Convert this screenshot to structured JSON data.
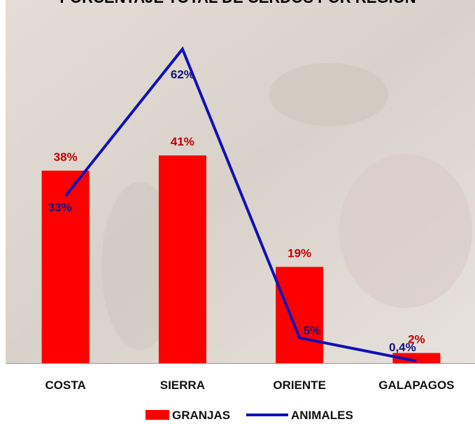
{
  "chart_data": {
    "type": "bar-line",
    "title": "PORCENTAJE TOTAL DE CERDOS POR REGION",
    "categories": [
      "COSTA",
      "SIERRA",
      "ORIENTE",
      "GALAPAGOS"
    ],
    "series": [
      {
        "name": "GRANJAS",
        "type": "bar",
        "color": "#ff0000",
        "values": [
          38,
          41,
          19,
          2
        ],
        "value_labels": [
          "38%",
          "41%",
          "19%",
          "2%"
        ]
      },
      {
        "name": "ANIMALES",
        "type": "line",
        "color": "#1010b8",
        "values": [
          33,
          62,
          5,
          0.4
        ],
        "value_labels": [
          "33%",
          "62%",
          "5%",
          "0,4%"
        ]
      }
    ],
    "legend": "bottom"
  }
}
